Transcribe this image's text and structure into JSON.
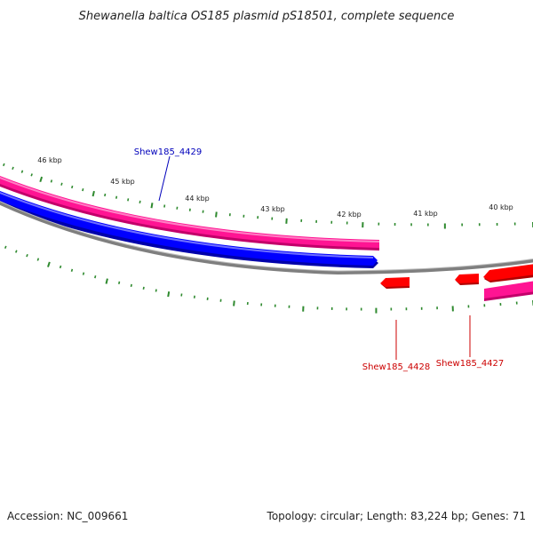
{
  "title": "Shewanella baltica OS185 plasmid pS18501, complete sequence",
  "footer": {
    "accession": "Accession: NC_009661",
    "summary": "Topology: circular; Length: 83,224 bp; Genes: 71"
  },
  "colors": {
    "tick": "#2f8a2f",
    "forward_label": "#0000bb",
    "reverse_label": "#cc0000",
    "pink_track": "#ff1493",
    "blue_track": "#0000ff",
    "backbone": "#808080",
    "reverse_gene": "#ff0000"
  },
  "scale": {
    "labels": [
      "46 kbp",
      "45 kbp",
      "44 kbp",
      "43 kbp",
      "42 kbp",
      "41 kbp",
      "40 kbp"
    ]
  },
  "genes": [
    {
      "name": "Shew185_4429",
      "strand": "forward"
    },
    {
      "name": "Shew185_4428",
      "strand": "reverse"
    },
    {
      "name": "Shew185_4427",
      "strand": "reverse"
    }
  ]
}
